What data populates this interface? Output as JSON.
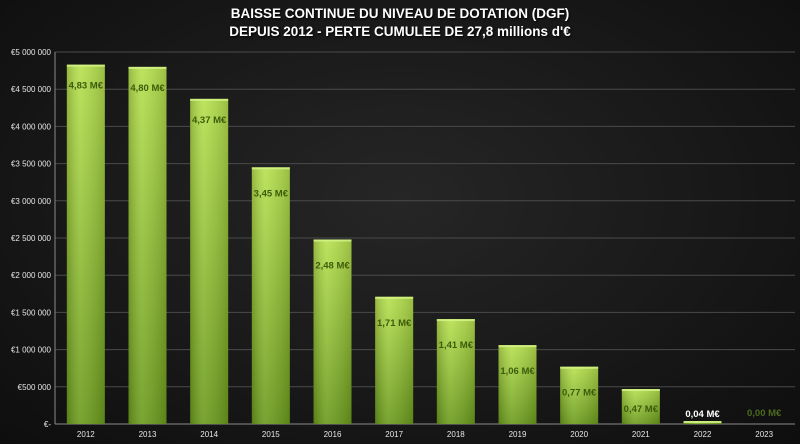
{
  "title_line_1": "BAISSE CONTINUE DU NIVEAU DE DOTATION (DGF)",
  "title_line_2": "DEPUIS 2012 - PERTE CUMULEE DE 27,8 millions d'€",
  "colors": {
    "bar_top": "#b6e04e",
    "bar_bottom": "#6a9a1c",
    "label_dark": "#3d5c0a",
    "label_light": "#ffffff",
    "label_faint": "#4d6b1e",
    "gridline": "#4a4a4a",
    "axis": "#8a8a8a"
  },
  "chart_data": {
    "type": "bar",
    "title": "BAISSE CONTINUE DU NIVEAU DE DOTATION (DGF) DEPUIS 2012 - PERTE CUMULEE DE 27,8 millions d'€",
    "categories": [
      "2012",
      "2013",
      "2014",
      "2015",
      "2016",
      "2017",
      "2018",
      "2019",
      "2020",
      "2021",
      "2022",
      "2023"
    ],
    "values": [
      4830000,
      4800000,
      4370000,
      3450000,
      2480000,
      1710000,
      1410000,
      1060000,
      770000,
      470000,
      40000,
      0
    ],
    "data_labels": [
      "4,83 M€",
      "4,80 M€",
      "4,37 M€",
      "3,45 M€",
      "2,48 M€",
      "1,71 M€",
      "1,41 M€",
      "1,06 M€",
      "0,77 M€",
      "0,47 M€",
      "0,04 M€",
      "0,00 M€"
    ],
    "ylim": [
      0,
      5000000
    ],
    "y_ticks": [
      0,
      500000,
      1000000,
      1500000,
      2000000,
      2500000,
      3000000,
      3500000,
      4000000,
      4500000,
      5000000
    ],
    "y_tick_labels": [
      "€-",
      "€500 000",
      "€1 000 000",
      "€1 500 000",
      "€2 000 000",
      "€2 500 000",
      "€3 000 000",
      "€3 500 000",
      "€4 000 000",
      "€4 500 000",
      "€5 000 000"
    ],
    "grid": true,
    "legend": "none",
    "xlabel": "",
    "ylabel": ""
  }
}
